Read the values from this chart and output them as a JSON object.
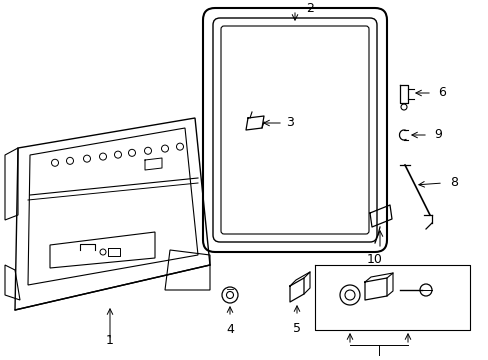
{
  "background_color": "#ffffff",
  "line_color": "#000000",
  "fig_width": 4.89,
  "fig_height": 3.6,
  "dpi": 100,
  "labels": [
    "1",
    "2",
    "3",
    "4",
    "5",
    "6",
    "7",
    "8",
    "9",
    "10"
  ]
}
